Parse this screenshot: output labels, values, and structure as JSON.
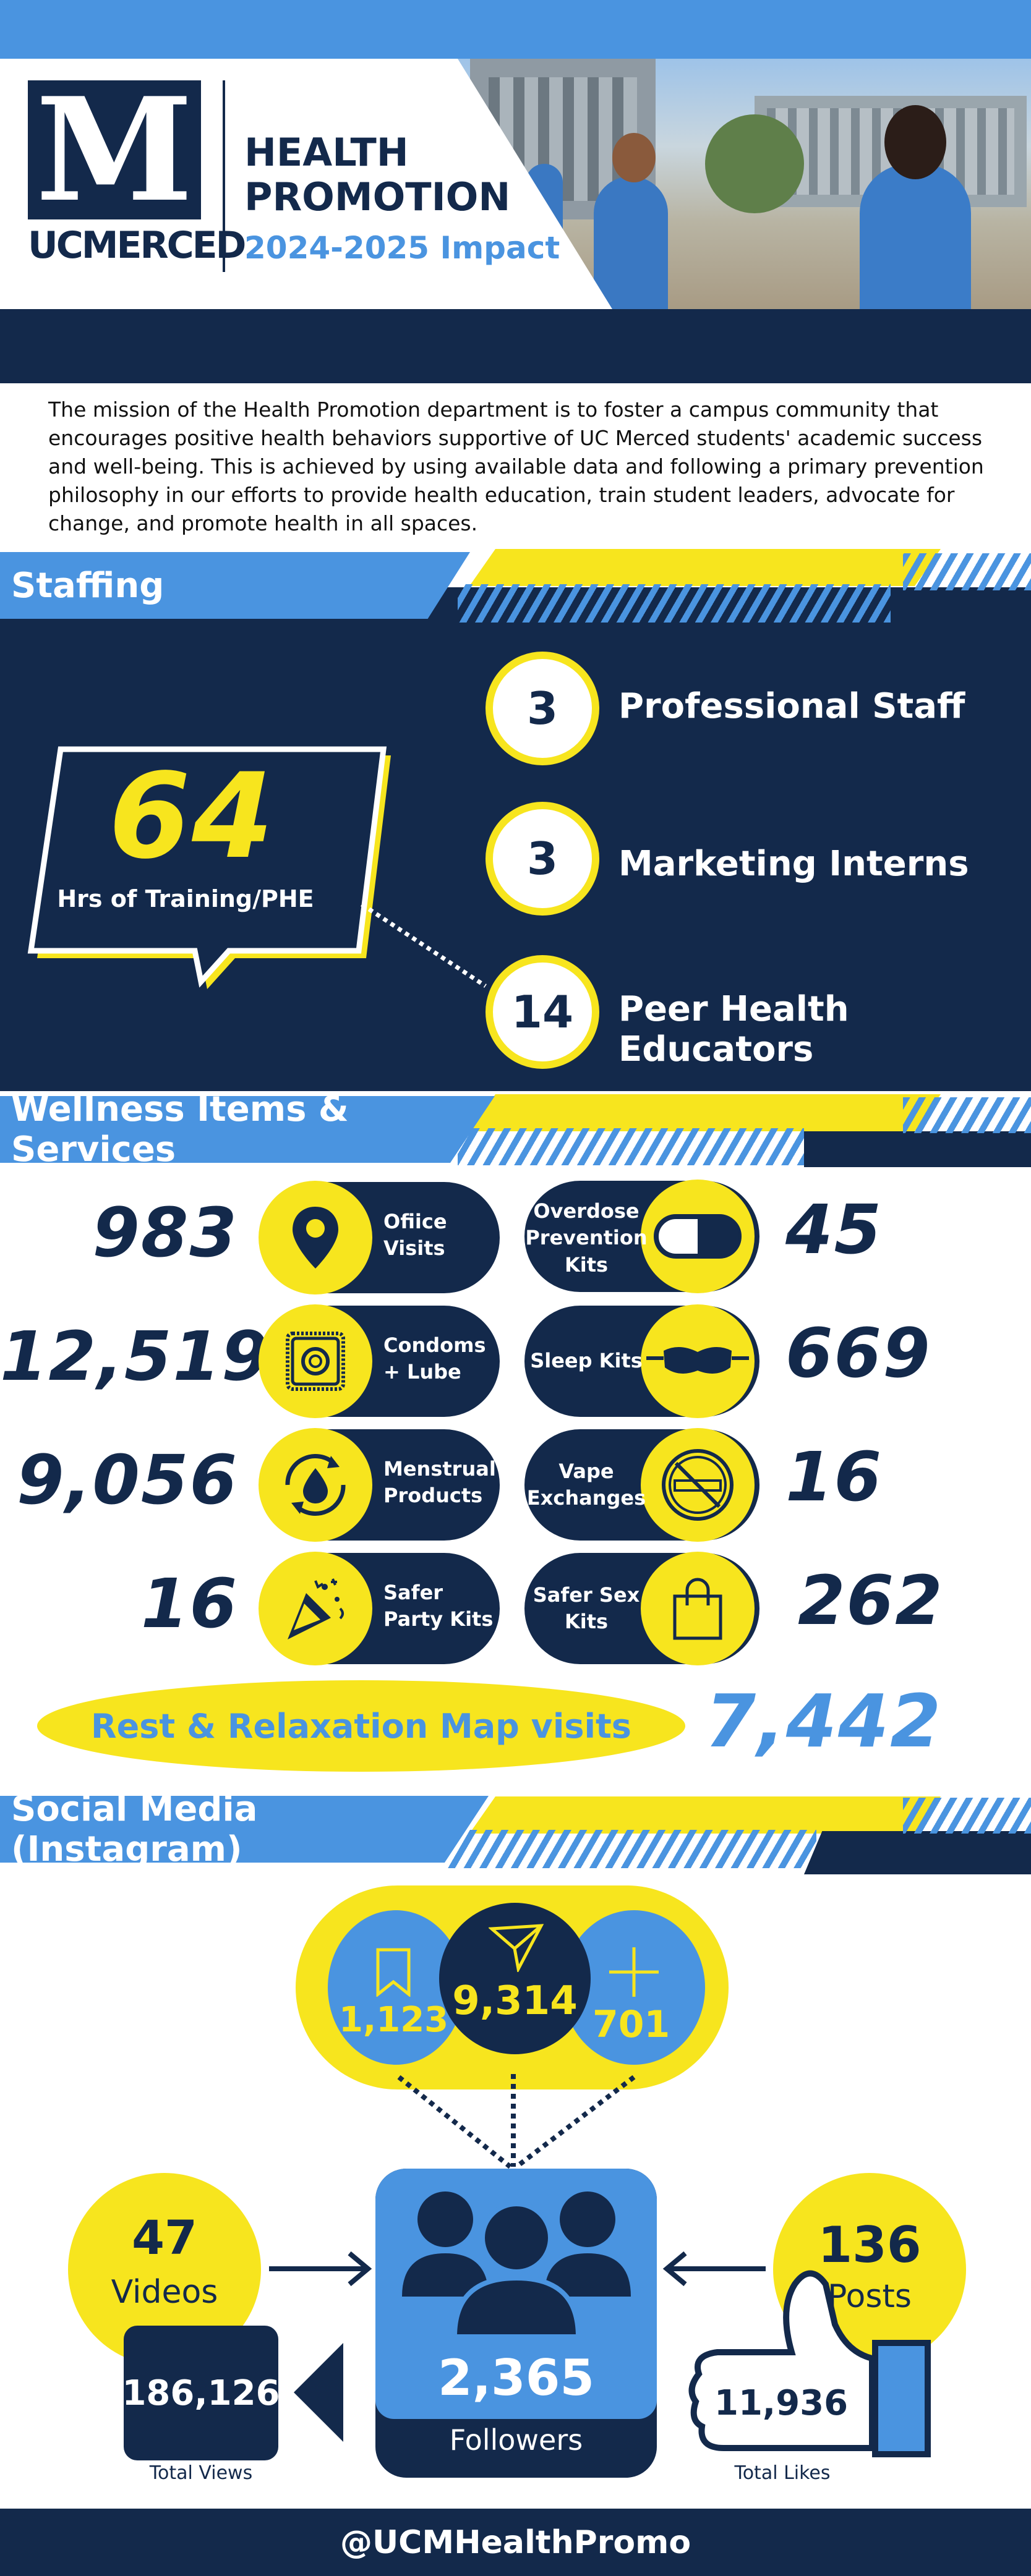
{
  "header": {
    "logo_letter": "M",
    "logo_text": "UCMERCED",
    "title_line1": "HEALTH",
    "title_line2": "PROMOTION",
    "subtitle": "2024-2025 Impact"
  },
  "mission": "The mission of the Health Promotion department is to foster a campus community that encourages positive health behaviors supportive of UC Merced students' academic success and well-being. This is achieved by using available data and following a primary prevention philosophy in our efforts to provide health education, train student leaders, advocate for change, and promote health in all spaces.",
  "staffing": {
    "title": "Staffing",
    "training_hours": "64",
    "training_label": "Hrs of Training/PHE",
    "items": [
      {
        "count": "3",
        "label": "Professional Staff"
      },
      {
        "count": "3",
        "label": "Marketing Interns"
      },
      {
        "count": "14",
        "label": "Peer Health Educators"
      }
    ]
  },
  "wellness": {
    "title": "Wellness Items & Services",
    "left": [
      {
        "value": "983",
        "label": "Ofiice Visits",
        "icon": "map-pin-icon"
      },
      {
        "value": "12,519",
        "label": "Condoms + Lube",
        "icon": "condom-icon"
      },
      {
        "value": "9,056",
        "label": "Menstrual Products",
        "icon": "drop-icon"
      },
      {
        "value": "16",
        "label": "Safer Party Kits",
        "icon": "party-popper-icon"
      }
    ],
    "right": [
      {
        "value": "45",
        "label": "Overdose Prevention Kits",
        "icon": "pill-capsule-icon"
      },
      {
        "value": "669",
        "label": "Sleep Kits",
        "icon": "sleep-mask-icon"
      },
      {
        "value": "16",
        "label": "Vape Exchanges",
        "icon": "no-vape-icon"
      },
      {
        "value": "262",
        "label": "Safer Sex Kits",
        "icon": "bag-icon"
      }
    ],
    "relax_label": "Rest & Relaxation Map visits",
    "relax_value": "7,442"
  },
  "social": {
    "title": "Social Media (Instagram)",
    "saves": "1,123",
    "shares": "9,314",
    "follows": "701",
    "videos_count": "47",
    "videos_label": "Videos",
    "views_count": "186,126",
    "views_label": "Total Views",
    "followers_count": "2,365",
    "followers_label": "Followers",
    "posts_count": "136",
    "posts_label": "Posts",
    "likes_count": "11,936",
    "likes_label": "Total Likes"
  },
  "footer": {
    "handle": "@UCMHealthPromo"
  },
  "colors": {
    "navy": "#13294b",
    "blue": "#4a94e0",
    "yellow": "#f7e51e"
  }
}
